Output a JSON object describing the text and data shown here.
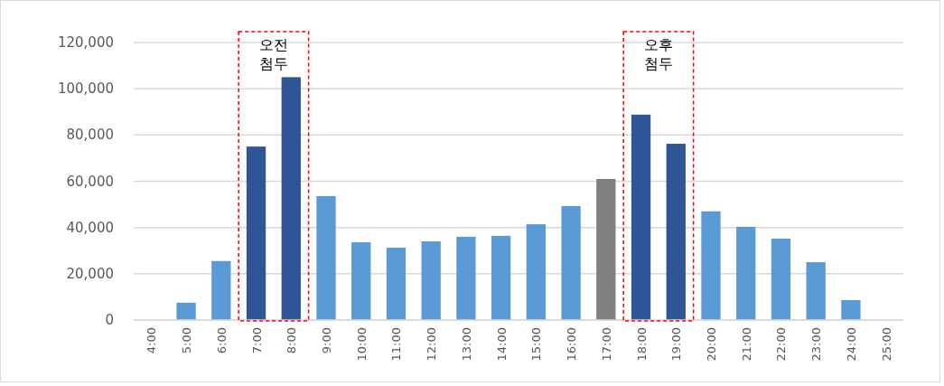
{
  "chart_data": {
    "type": "bar",
    "categories": [
      "4:00",
      "5:00",
      "6:00",
      "7:00",
      "8:00",
      "9:00",
      "10:00",
      "11:00",
      "12:00",
      "13:00",
      "14:00",
      "15:00",
      "16:00",
      "17:00",
      "18:00",
      "19:00",
      "20:00",
      "21:00",
      "22:00",
      "23:00",
      "24:00",
      "25:00"
    ],
    "values": [
      0,
      7500,
      25500,
      75000,
      105000,
      53600,
      33600,
      31300,
      34000,
      36000,
      36400,
      41400,
      49300,
      61000,
      88800,
      76200,
      47000,
      40300,
      35200,
      25000,
      8600,
      0
    ],
    "colors": [
      "#5b9bd5",
      "#5b9bd5",
      "#5b9bd5",
      "#2f5597",
      "#2f5597",
      "#5b9bd5",
      "#5b9bd5",
      "#5b9bd5",
      "#5b9bd5",
      "#5b9bd5",
      "#5b9bd5",
      "#5b9bd5",
      "#5b9bd5",
      "#7f7f7f",
      "#2f5597",
      "#2f5597",
      "#5b9bd5",
      "#5b9bd5",
      "#5b9bd5",
      "#5b9bd5",
      "#5b9bd5",
      "#5b9bd5"
    ],
    "ylim": [
      0,
      120000
    ],
    "yticks": [
      {
        "value": 0,
        "label": "0"
      },
      {
        "value": 20000,
        "label": "20,000"
      },
      {
        "value": 40000,
        "label": "40,000"
      },
      {
        "value": 60000,
        "label": "60,000"
      },
      {
        "value": 80000,
        "label": "80,000"
      },
      {
        "value": 100000,
        "label": "100,000"
      },
      {
        "value": 120000,
        "label": "120,000"
      }
    ],
    "grid": "y",
    "annotations": [
      "오전 첨두",
      "오후 첨두"
    ]
  }
}
